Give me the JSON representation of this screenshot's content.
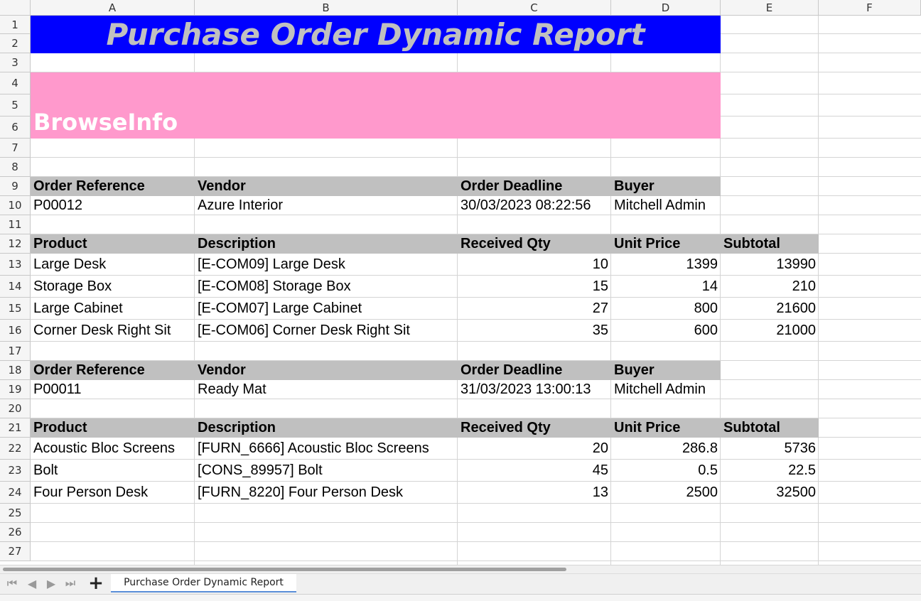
{
  "columns": [
    "A",
    "B",
    "C",
    "D",
    "E",
    "F"
  ],
  "rows": [
    "1",
    "2",
    "3",
    "4",
    "5",
    "6",
    "7",
    "8",
    "9",
    "10",
    "11",
    "12",
    "13",
    "14",
    "15",
    "16",
    "17",
    "18",
    "19",
    "20",
    "21",
    "22",
    "23",
    "24",
    "25",
    "26",
    "27"
  ],
  "report": {
    "title": "Purchase Order Dynamic Report",
    "brand": "BrowseInfo",
    "title_bg": "#0000ff",
    "title_color": "#c0c0c0",
    "brand_bg": "#ff99cc",
    "header_bg": "#c0c0c0"
  },
  "order_header_labels": [
    "Order Reference",
    "Vendor",
    "Order Deadline",
    "Buyer"
  ],
  "line_header_labels": [
    "Product",
    "Description",
    "Received Qty",
    "Unit Price",
    "Subtotal"
  ],
  "orders": [
    {
      "info": [
        "P00012",
        "Azure Interior",
        "30/03/2023 08:22:56",
        "Mitchell Admin"
      ],
      "lines": [
        [
          "Large Desk",
          "[E-COM09] Large Desk",
          "10",
          "1399",
          "13990"
        ],
        [
          "Storage Box",
          "[E-COM08] Storage Box",
          "15",
          "14",
          "210"
        ],
        [
          "Large Cabinet",
          "[E-COM07] Large Cabinet",
          "27",
          "800",
          "21600"
        ],
        [
          "Corner Desk Right Sit",
          "[E-COM06] Corner Desk Right Sit",
          "35",
          "600",
          "21000"
        ]
      ]
    },
    {
      "info": [
        "P00011",
        "Ready Mat",
        "31/03/2023 13:00:13",
        "Mitchell Admin"
      ],
      "lines": [
        [
          "Acoustic Bloc Screens",
          "[FURN_6666] Acoustic Bloc Screens",
          "20",
          "286.8",
          "5736"
        ],
        [
          "Bolt",
          "[CONS_89957] Bolt",
          "45",
          "0.5",
          "22.5"
        ],
        [
          "Four Person Desk",
          "[FURN_8220] Four Person Desk",
          "13",
          "2500",
          "32500"
        ]
      ]
    }
  ],
  "sheet_tab": "Purchase Order Dynamic Report"
}
